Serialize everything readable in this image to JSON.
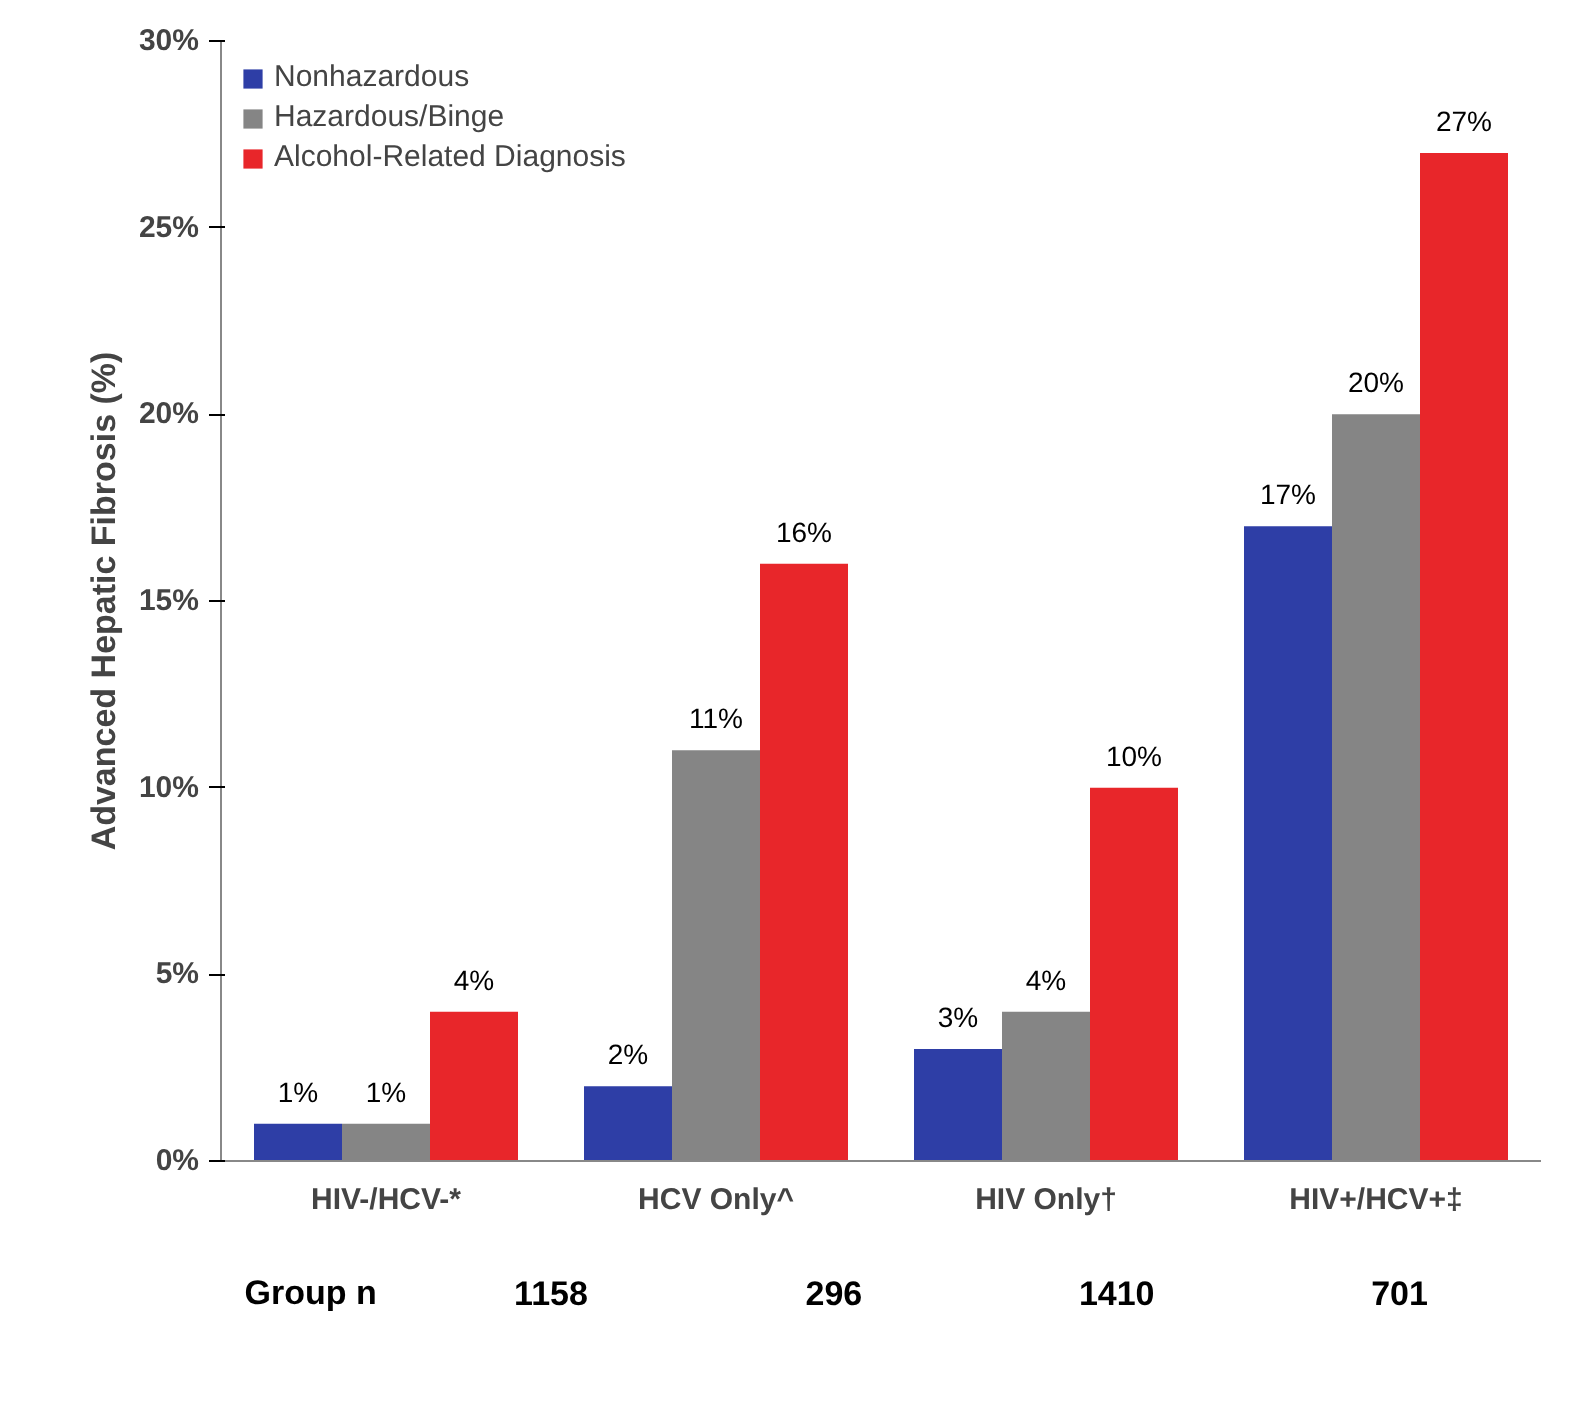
{
  "chart_data": {
    "type": "bar",
    "ylabel": "Advanced Hepatic Fibrosis (%)",
    "categories": [
      "HIV-/HCV-*",
      "HCV Only^",
      "HIV Only†",
      "HIV+/HCV+‡"
    ],
    "series": [
      {
        "name": "Nonhazardous",
        "color": "#2e3ea6",
        "values": [
          1,
          2,
          3,
          17
        ],
        "value_labels": [
          "1%",
          "2%",
          "3%",
          "17%"
        ]
      },
      {
        "name": "Hazardous/Binge",
        "color": "#858585",
        "values": [
          1,
          11,
          4,
          20
        ],
        "value_labels": [
          "1%",
          "11%",
          "4%",
          "20%"
        ]
      },
      {
        "name": "Alcohol-Related Diagnosis",
        "color": "#e8262a",
        "values": [
          4,
          16,
          10,
          27
        ],
        "value_labels": [
          "4%",
          "16%",
          "10%",
          "27%"
        ]
      }
    ],
    "ylim": [
      0,
      30
    ],
    "yticks": [
      {
        "value": 0,
        "label": "0%"
      },
      {
        "value": 5,
        "label": "5%"
      },
      {
        "value": 10,
        "label": "10%"
      },
      {
        "value": 15,
        "label": "15%"
      },
      {
        "value": 20,
        "label": "20%"
      },
      {
        "value": 25,
        "label": "25%"
      },
      {
        "value": 30,
        "label": "30%"
      }
    ],
    "grid": false,
    "legend": "top left",
    "annotations": [
      "Group n",
      "1158",
      "296",
      "1410",
      "701"
    ]
  }
}
